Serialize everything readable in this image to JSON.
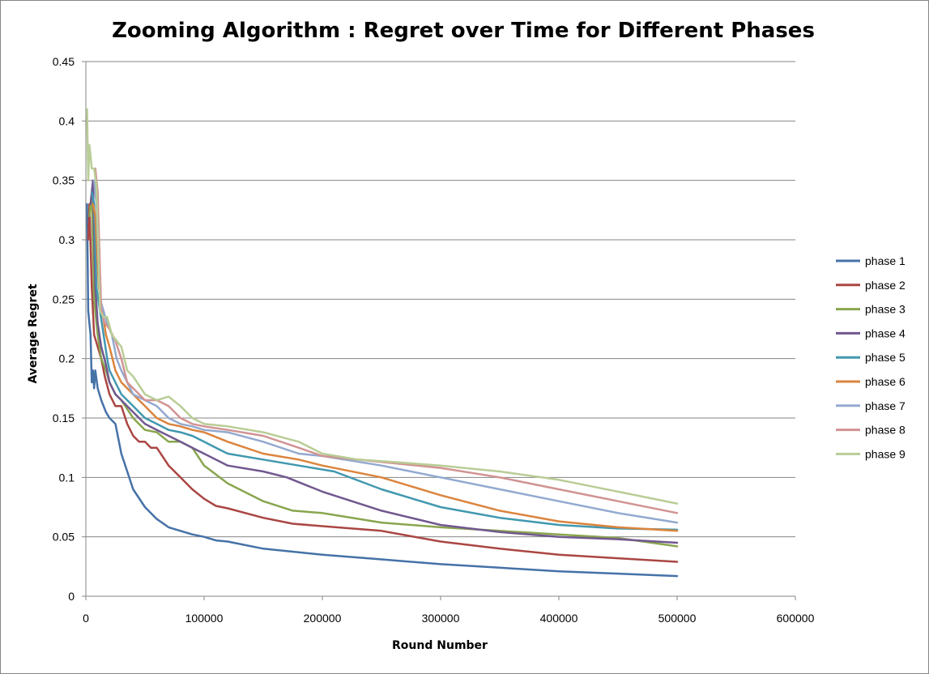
{
  "chart_data": {
    "type": "line",
    "title": "Zooming Algorithm : Regret over Time for Different Phases",
    "xlabel": "Round Number",
    "ylabel": "Average Regret",
    "xlim": [
      0,
      600000
    ],
    "ylim": [
      0,
      0.45
    ],
    "x_ticks": [
      "0",
      "100000",
      "200000",
      "300000",
      "400000",
      "500000",
      "600000"
    ],
    "y_ticks": [
      "0",
      "0.05",
      "0.1",
      "0.15",
      "0.2",
      "0.25",
      "0.3",
      "0.35",
      "0.4",
      "0.45"
    ],
    "grid": "horizontal",
    "legend": "right",
    "series": [
      {
        "name": "phase 1",
        "color": "#4572A7",
        "points": [
          [
            1000,
            0.33
          ],
          [
            2000,
            0.24
          ],
          [
            4000,
            0.22
          ],
          [
            5000,
            0.18
          ],
          [
            6000,
            0.19
          ],
          [
            7000,
            0.175
          ],
          [
            8000,
            0.19
          ],
          [
            10000,
            0.175
          ],
          [
            13000,
            0.165
          ],
          [
            17000,
            0.155
          ],
          [
            20000,
            0.15
          ],
          [
            25000,
            0.145
          ],
          [
            30000,
            0.12
          ],
          [
            40000,
            0.09
          ],
          [
            50000,
            0.075
          ],
          [
            60000,
            0.065
          ],
          [
            70000,
            0.058
          ],
          [
            80000,
            0.055
          ],
          [
            90000,
            0.052
          ],
          [
            100000,
            0.05
          ],
          [
            110000,
            0.047
          ],
          [
            120000,
            0.046
          ],
          [
            150000,
            0.04
          ],
          [
            200000,
            0.035
          ],
          [
            250000,
            0.031
          ],
          [
            300000,
            0.027
          ],
          [
            350000,
            0.024
          ],
          [
            400000,
            0.021
          ],
          [
            450000,
            0.019
          ],
          [
            500000,
            0.017
          ]
        ]
      },
      {
        "name": "phase 2",
        "color": "#AA4643",
        "points": [
          [
            2000,
            0.3
          ],
          [
            3000,
            0.33
          ],
          [
            5000,
            0.26
          ],
          [
            7000,
            0.22
          ],
          [
            10000,
            0.21
          ],
          [
            13000,
            0.2
          ],
          [
            16000,
            0.185
          ],
          [
            20000,
            0.17
          ],
          [
            25000,
            0.16
          ],
          [
            30000,
            0.16
          ],
          [
            35000,
            0.145
          ],
          [
            40000,
            0.135
          ],
          [
            45000,
            0.13
          ],
          [
            50000,
            0.13
          ],
          [
            55000,
            0.125
          ],
          [
            60000,
            0.125
          ],
          [
            70000,
            0.11
          ],
          [
            80000,
            0.1
          ],
          [
            90000,
            0.09
          ],
          [
            100000,
            0.082
          ],
          [
            110000,
            0.076
          ],
          [
            120000,
            0.074
          ],
          [
            150000,
            0.066
          ],
          [
            175000,
            0.061
          ],
          [
            200000,
            0.059
          ],
          [
            250000,
            0.055
          ],
          [
            300000,
            0.046
          ],
          [
            350000,
            0.04
          ],
          [
            400000,
            0.035
          ],
          [
            450000,
            0.032
          ],
          [
            500000,
            0.029
          ]
        ]
      },
      {
        "name": "phase 3",
        "color": "#89A54E",
        "points": [
          [
            3000,
            0.32
          ],
          [
            5000,
            0.34
          ],
          [
            7000,
            0.25
          ],
          [
            10000,
            0.22
          ],
          [
            13000,
            0.2
          ],
          [
            17000,
            0.19
          ],
          [
            20000,
            0.18
          ],
          [
            25000,
            0.17
          ],
          [
            30000,
            0.165
          ],
          [
            40000,
            0.15
          ],
          [
            50000,
            0.14
          ],
          [
            60000,
            0.138
          ],
          [
            70000,
            0.13
          ],
          [
            80000,
            0.13
          ],
          [
            90000,
            0.125
          ],
          [
            100000,
            0.11
          ],
          [
            120000,
            0.095
          ],
          [
            150000,
            0.08
          ],
          [
            175000,
            0.072
          ],
          [
            200000,
            0.07
          ],
          [
            250000,
            0.062
          ],
          [
            300000,
            0.058
          ],
          [
            350000,
            0.055
          ],
          [
            400000,
            0.052
          ],
          [
            450000,
            0.049
          ],
          [
            500000,
            0.042
          ]
        ]
      },
      {
        "name": "phase 4",
        "color": "#71588F",
        "points": [
          [
            4000,
            0.33
          ],
          [
            6000,
            0.35
          ],
          [
            8000,
            0.26
          ],
          [
            10000,
            0.23
          ],
          [
            13000,
            0.21
          ],
          [
            17000,
            0.195
          ],
          [
            20000,
            0.18
          ],
          [
            25000,
            0.17
          ],
          [
            30000,
            0.165
          ],
          [
            40000,
            0.155
          ],
          [
            50000,
            0.145
          ],
          [
            60000,
            0.14
          ],
          [
            70000,
            0.135
          ],
          [
            80000,
            0.13
          ],
          [
            90000,
            0.125
          ],
          [
            100000,
            0.12
          ],
          [
            120000,
            0.11
          ],
          [
            150000,
            0.105
          ],
          [
            170000,
            0.1
          ],
          [
            200000,
            0.088
          ],
          [
            250000,
            0.072
          ],
          [
            300000,
            0.06
          ],
          [
            350000,
            0.054
          ],
          [
            400000,
            0.05
          ],
          [
            450000,
            0.048
          ],
          [
            500000,
            0.045
          ]
        ]
      },
      {
        "name": "phase 5",
        "color": "#4198AF",
        "points": [
          [
            5000,
            0.34
          ],
          [
            7000,
            0.33
          ],
          [
            9000,
            0.26
          ],
          [
            12000,
            0.24
          ],
          [
            15000,
            0.22
          ],
          [
            18000,
            0.2
          ],
          [
            20000,
            0.19
          ],
          [
            25000,
            0.18
          ],
          [
            30000,
            0.17
          ],
          [
            40000,
            0.16
          ],
          [
            50000,
            0.15
          ],
          [
            60000,
            0.145
          ],
          [
            70000,
            0.14
          ],
          [
            80000,
            0.138
          ],
          [
            90000,
            0.135
          ],
          [
            100000,
            0.13
          ],
          [
            110000,
            0.125
          ],
          [
            120000,
            0.12
          ],
          [
            150000,
            0.115
          ],
          [
            180000,
            0.11
          ],
          [
            210000,
            0.105
          ],
          [
            250000,
            0.09
          ],
          [
            300000,
            0.075
          ],
          [
            350000,
            0.066
          ],
          [
            400000,
            0.06
          ],
          [
            450000,
            0.057
          ],
          [
            500000,
            0.056
          ]
        ]
      },
      {
        "name": "phase 6",
        "color": "#DB843D",
        "points": [
          [
            6000,
            0.33
          ],
          [
            8000,
            0.32
          ],
          [
            11000,
            0.26
          ],
          [
            14000,
            0.24
          ],
          [
            17000,
            0.22
          ],
          [
            20000,
            0.21
          ],
          [
            25000,
            0.19
          ],
          [
            30000,
            0.18
          ],
          [
            40000,
            0.17
          ],
          [
            50000,
            0.16
          ],
          [
            60000,
            0.15
          ],
          [
            70000,
            0.145
          ],
          [
            80000,
            0.143
          ],
          [
            90000,
            0.14
          ],
          [
            100000,
            0.138
          ],
          [
            120000,
            0.13
          ],
          [
            150000,
            0.12
          ],
          [
            180000,
            0.115
          ],
          [
            200000,
            0.11
          ],
          [
            250000,
            0.1
          ],
          [
            300000,
            0.085
          ],
          [
            350000,
            0.072
          ],
          [
            400000,
            0.063
          ],
          [
            450000,
            0.058
          ],
          [
            500000,
            0.055
          ]
        ]
      },
      {
        "name": "phase 7",
        "color": "#93A9CF",
        "points": [
          [
            7000,
            0.35
          ],
          [
            9000,
            0.33
          ],
          [
            12000,
            0.25
          ],
          [
            15000,
            0.24
          ],
          [
            18000,
            0.23
          ],
          [
            22000,
            0.22
          ],
          [
            26000,
            0.2
          ],
          [
            30000,
            0.19
          ],
          [
            40000,
            0.17
          ],
          [
            50000,
            0.165
          ],
          [
            60000,
            0.16
          ],
          [
            70000,
            0.15
          ],
          [
            80000,
            0.145
          ],
          [
            90000,
            0.143
          ],
          [
            100000,
            0.14
          ],
          [
            120000,
            0.138
          ],
          [
            150000,
            0.13
          ],
          [
            180000,
            0.12
          ],
          [
            200000,
            0.118
          ],
          [
            250000,
            0.11
          ],
          [
            300000,
            0.1
          ],
          [
            350000,
            0.09
          ],
          [
            400000,
            0.08
          ],
          [
            450000,
            0.07
          ],
          [
            500000,
            0.062
          ]
        ]
      },
      {
        "name": "phase 8",
        "color": "#D19392",
        "points": [
          [
            8000,
            0.36
          ],
          [
            10000,
            0.34
          ],
          [
            13000,
            0.24
          ],
          [
            16000,
            0.23
          ],
          [
            20000,
            0.225
          ],
          [
            25000,
            0.215
          ],
          [
            30000,
            0.2
          ],
          [
            35000,
            0.18
          ],
          [
            40000,
            0.175
          ],
          [
            50000,
            0.165
          ],
          [
            60000,
            0.165
          ],
          [
            70000,
            0.16
          ],
          [
            80000,
            0.15
          ],
          [
            90000,
            0.145
          ],
          [
            100000,
            0.143
          ],
          [
            120000,
            0.14
          ],
          [
            150000,
            0.135
          ],
          [
            180000,
            0.125
          ],
          [
            200000,
            0.118
          ],
          [
            250000,
            0.113
          ],
          [
            300000,
            0.108
          ],
          [
            350000,
            0.1
          ],
          [
            400000,
            0.09
          ],
          [
            450000,
            0.08
          ],
          [
            500000,
            0.07
          ]
        ]
      },
      {
        "name": "phase 9",
        "color": "#B9CD96",
        "points": [
          [
            1000,
            0.41
          ],
          [
            2000,
            0.35
          ],
          [
            3000,
            0.38
          ],
          [
            5000,
            0.36
          ],
          [
            7000,
            0.36
          ],
          [
            9000,
            0.345
          ],
          [
            12000,
            0.24
          ],
          [
            15000,
            0.235
          ],
          [
            18000,
            0.235
          ],
          [
            22000,
            0.22
          ],
          [
            26000,
            0.215
          ],
          [
            30000,
            0.21
          ],
          [
            35000,
            0.19
          ],
          [
            40000,
            0.185
          ],
          [
            50000,
            0.17
          ],
          [
            60000,
            0.165
          ],
          [
            70000,
            0.168
          ],
          [
            80000,
            0.16
          ],
          [
            90000,
            0.15
          ],
          [
            100000,
            0.145
          ],
          [
            120000,
            0.143
          ],
          [
            150000,
            0.138
          ],
          [
            180000,
            0.13
          ],
          [
            200000,
            0.12
          ],
          [
            230000,
            0.115
          ],
          [
            260000,
            0.113
          ],
          [
            300000,
            0.11
          ],
          [
            350000,
            0.105
          ],
          [
            400000,
            0.098
          ],
          [
            450000,
            0.088
          ],
          [
            500000,
            0.078
          ]
        ]
      }
    ]
  }
}
